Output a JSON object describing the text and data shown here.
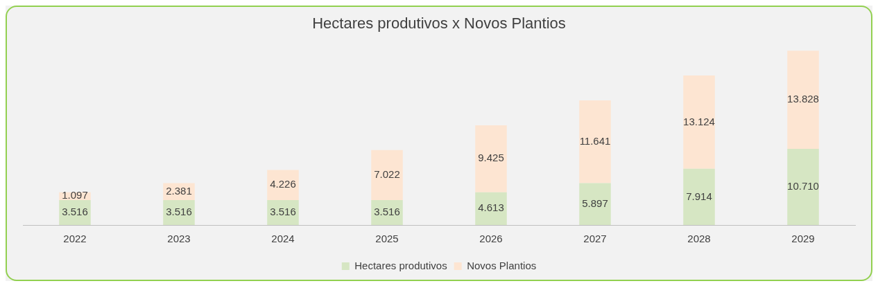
{
  "chart_data": {
    "type": "bar",
    "title": "Hectares produtivos x Novos Plantios",
    "categories": [
      "2022",
      "2023",
      "2024",
      "2025",
      "2026",
      "2027",
      "2028",
      "2029"
    ],
    "stacked": true,
    "legend": "bottom",
    "grid": false,
    "series": [
      {
        "name": "Hectares produtivos",
        "color": "#d6e6c3",
        "values": [
          3516,
          3516,
          3516,
          3516,
          4613,
          5897,
          7914,
          10710
        ],
        "value_labels": [
          "3.516",
          "3.516",
          "3.516",
          "3.516",
          "4.613",
          "5.897",
          "7.914",
          "10.710"
        ]
      },
      {
        "name": "Novos Plantios",
        "color": "#fde5d2",
        "values": [
          1097,
          2381,
          4226,
          7022,
          9425,
          11641,
          13124,
          13828
        ],
        "value_labels": [
          "1.097",
          "2.381",
          "4.226",
          "7.022",
          "9.425",
          "11.641",
          "13.124",
          "13.828"
        ]
      }
    ]
  }
}
